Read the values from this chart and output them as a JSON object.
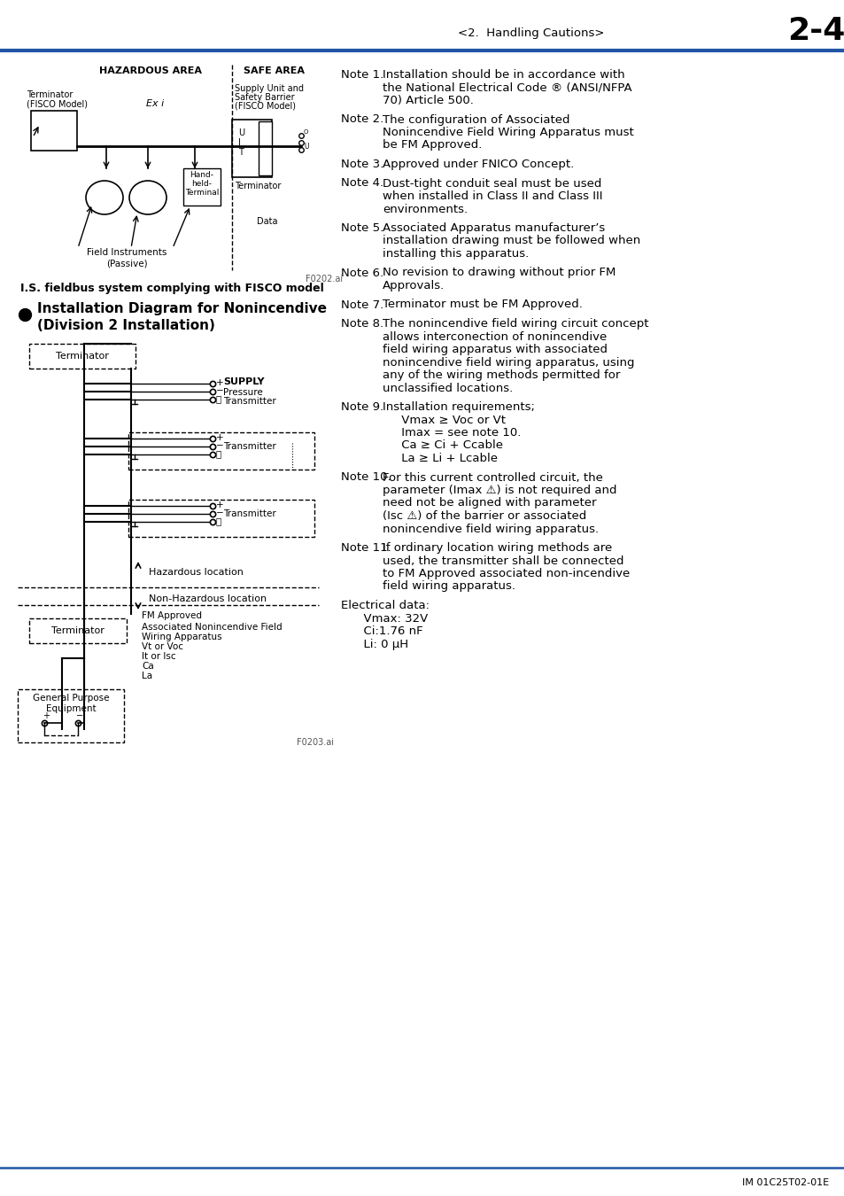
{
  "page_header_left": "<2.  Handling Cautions>",
  "page_header_right": "2-4",
  "header_line_color": "#2255a4",
  "bottom_line_color": "#2255a4",
  "footer_text": "IM 01C25T02-01E",
  "section1_title": "I.S. fieldbus system complying with FISCO model",
  "notes": [
    {
      "num": "1.",
      "lines": [
        "Installation should be in accordance with",
        "the National Electrical Code ® (ANSI/NFPA",
        "70) Article 500."
      ]
    },
    {
      "num": "2.",
      "lines": [
        "The configuration of Associated",
        "Nonincendive Field Wiring Apparatus must",
        "be FM Approved."
      ]
    },
    {
      "num": "3.",
      "lines": [
        "Approved under FNICO Concept."
      ]
    },
    {
      "num": "4.",
      "lines": [
        "Dust-tight conduit seal must be used",
        "when installed in Class II and Class III",
        "environments."
      ]
    },
    {
      "num": "5.",
      "lines": [
        "Associated Apparatus manufacturer’s",
        "installation drawing must be followed when",
        "installing this apparatus."
      ]
    },
    {
      "num": "6.",
      "lines": [
        "No revision to drawing without prior FM",
        "Approvals."
      ]
    },
    {
      "num": "7.",
      "lines": [
        "Terminator must be FM Approved."
      ]
    },
    {
      "num": "8.",
      "lines": [
        "The nonincendive field wiring circuit concept",
        "allows interconection of nonincendive",
        "field wiring apparatus with associated",
        "nonincendive field wiring apparatus, using",
        "any of the wiring methods permitted for",
        "unclassified locations."
      ]
    },
    {
      "num": "9.",
      "lines": [
        "Installation requirements;",
        "     Vmax ≥ Voc or Vt",
        "     Imax = see note 10.",
        "     Ca ≥ Ci + Ccable",
        "     La ≥ Li + Lcable"
      ]
    },
    {
      "num": "10.",
      "lines": [
        "For this current controlled circuit, the",
        "parameter (Imax ⚠) is not required and",
        "need not be aligned with parameter",
        "(Isc ⚠) of the barrier or associated",
        "nonincendive field wiring apparatus."
      ]
    },
    {
      "num": "11.",
      "lines": [
        "If ordinary location wiring methods are",
        "used, the transmitter shall be connected",
        "to FM Approved associated non-incendive",
        "field wiring apparatus."
      ]
    }
  ],
  "elec_lines": [
    "Electrical data:",
    "      Vmax: 32V",
    "      Ci:1.76 nF",
    "      Li: 0 μH"
  ]
}
